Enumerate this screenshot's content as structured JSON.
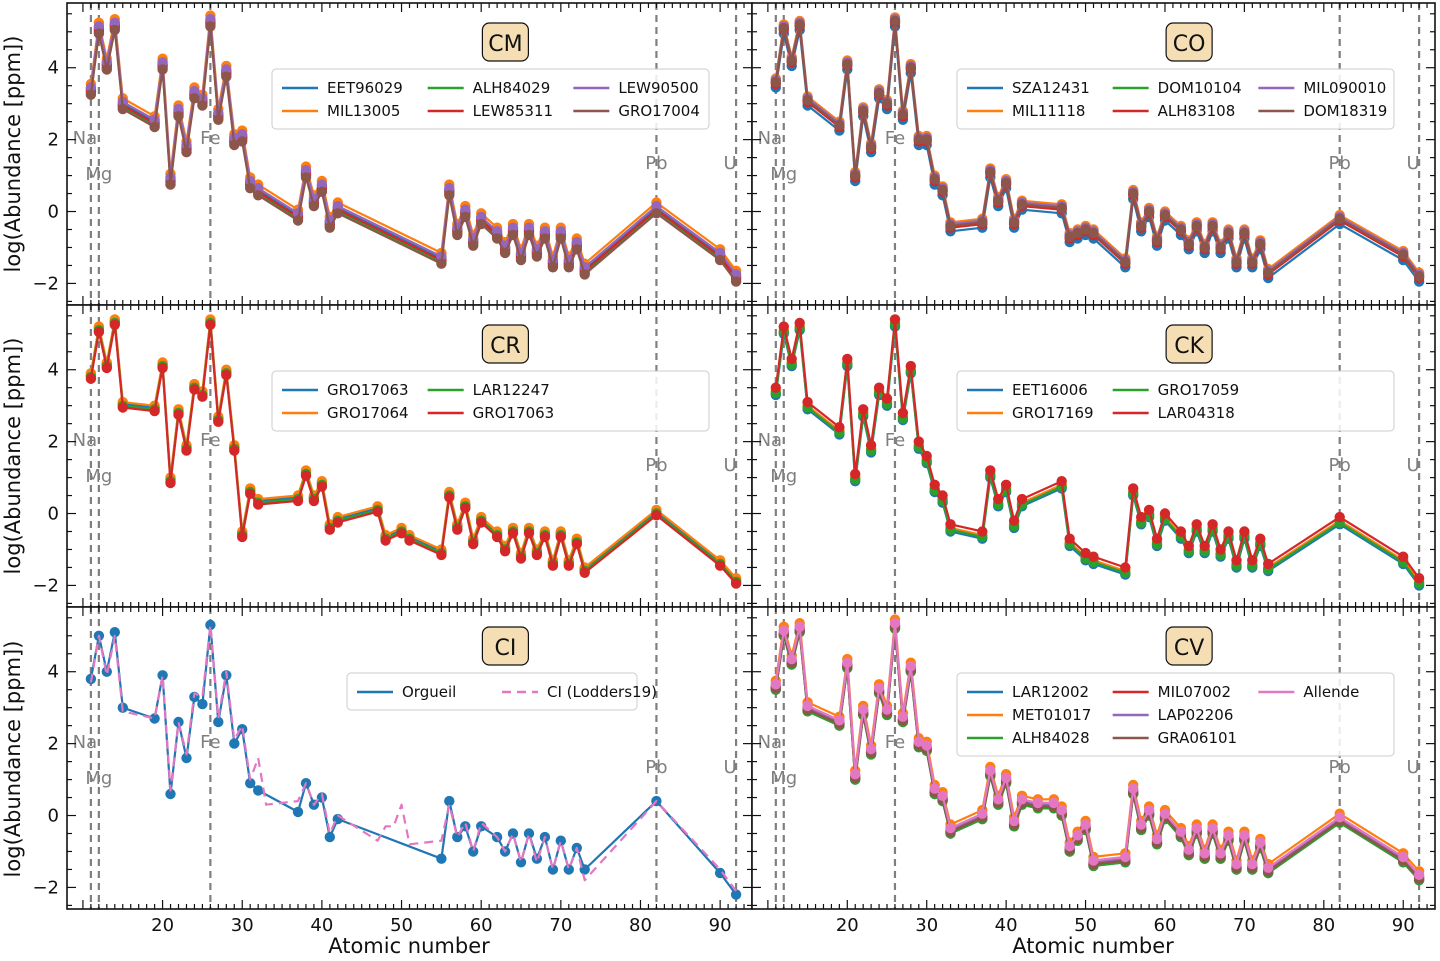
{
  "figure": {
    "xlabel": "Atomic number",
    "ylabel": "log(Abundance [ppm])",
    "xlim": [
      8,
      94
    ],
    "ylim": [
      -2.6,
      5.8
    ],
    "xticks": [
      20,
      30,
      40,
      50,
      60,
      70,
      80,
      90
    ],
    "yticks": [
      -2,
      0,
      2,
      4
    ],
    "element_markers": [
      {
        "label": "Na",
        "z": 11
      },
      {
        "label": "Mg",
        "z": 12
      },
      {
        "label": "Fe",
        "z": 26
      },
      {
        "label": "Pb",
        "z": 82
      },
      {
        "label": "U",
        "z": 92
      }
    ]
  },
  "colors": {
    "blue": "#1f77b4",
    "orange": "#ff7f0e",
    "green": "#2ca02c",
    "red": "#d62728",
    "purple": "#9467bd",
    "brown": "#8c564b",
    "pink": "#e377c2",
    "dashed_marker": "#7f7f7f",
    "title_box": "#f5deb3"
  },
  "chart_data": [
    {
      "type": "line",
      "title": "CM",
      "x": [
        11,
        12,
        13,
        14,
        15,
        19,
        20,
        21,
        22,
        23,
        24,
        25,
        26,
        27,
        28,
        29,
        30,
        31,
        32,
        37,
        38,
        39,
        40,
        41,
        42,
        55,
        56,
        57,
        58,
        59,
        60,
        62,
        63,
        64,
        65,
        66,
        67,
        68,
        69,
        70,
        71,
        72,
        73,
        82,
        90,
        92
      ],
      "reference": [
        3.4,
        5.1,
        4.1,
        5.2,
        3.0,
        2.5,
        4.1,
        0.9,
        2.8,
        1.8,
        3.3,
        3.1,
        5.3,
        2.7,
        3.9,
        2.0,
        2.1,
        0.8,
        0.6,
        -0.1,
        1.1,
        0.3,
        0.7,
        -0.3,
        0.1,
        -1.3,
        0.6,
        -0.5,
        0.0,
        -0.8,
        -0.2,
        -0.6,
        -1.0,
        -0.5,
        -1.2,
        -0.5,
        -1.1,
        -0.6,
        -1.4,
        -0.6,
        -1.4,
        -0.9,
        -1.6,
        0.1,
        -1.2,
        -1.8
      ],
      "offsets": [
        {
          "name": "EET96029",
          "color": "blue",
          "offset": 0.0
        },
        {
          "name": "MIL13005",
          "color": "orange",
          "offset": 0.15
        },
        {
          "name": "ALH84029",
          "color": "green",
          "offset": -0.1
        },
        {
          "name": "LEW85311",
          "color": "red",
          "offset": -0.05
        },
        {
          "name": "LEW90500",
          "color": "purple",
          "offset": 0.05
        },
        {
          "name": "GRO17004",
          "color": "brown",
          "offset": -0.15
        }
      ],
      "legend_ncol": 3
    },
    {
      "type": "line",
      "title": "CO",
      "x": [
        11,
        12,
        13,
        14,
        15,
        19,
        20,
        21,
        22,
        23,
        24,
        25,
        26,
        27,
        28,
        29,
        30,
        31,
        32,
        33,
        37,
        38,
        39,
        40,
        41,
        42,
        47,
        48,
        49,
        50,
        51,
        55,
        56,
        57,
        58,
        59,
        60,
        62,
        63,
        64,
        65,
        66,
        67,
        68,
        69,
        70,
        71,
        72,
        73,
        82,
        90,
        92
      ],
      "reference": [
        3.6,
        5.1,
        4.2,
        5.2,
        3.1,
        2.4,
        4.1,
        1.0,
        2.8,
        1.8,
        3.3,
        3.0,
        5.3,
        2.7,
        4.0,
        2.0,
        2.0,
        0.9,
        0.6,
        -0.4,
        -0.3,
        1.1,
        0.3,
        0.8,
        -0.3,
        0.2,
        0.1,
        -0.7,
        -0.6,
        -0.5,
        -0.6,
        -1.4,
        0.5,
        -0.4,
        0.0,
        -0.8,
        -0.1,
        -0.5,
        -0.9,
        -0.4,
        -1.0,
        -0.4,
        -1.0,
        -0.6,
        -1.4,
        -0.6,
        -1.4,
        -0.9,
        -1.7,
        -0.2,
        -1.2,
        -1.8
      ],
      "offsets": [
        {
          "name": "SZA12431",
          "color": "blue",
          "offset": -0.15
        },
        {
          "name": "MIL11118",
          "color": "orange",
          "offset": 0.1
        },
        {
          "name": "DOM10104",
          "color": "green",
          "offset": 0.0
        },
        {
          "name": "ALH83108",
          "color": "red",
          "offset": -0.05
        },
        {
          "name": "MIL090010",
          "color": "purple",
          "offset": 0.05
        },
        {
          "name": "DOM18319",
          "color": "brown",
          "offset": 0.0
        }
      ],
      "legend_ncol": 3
    },
    {
      "type": "line",
      "title": "CR",
      "x": [
        11,
        12,
        13,
        14,
        15,
        19,
        20,
        21,
        22,
        23,
        24,
        25,
        26,
        27,
        28,
        29,
        30,
        31,
        32,
        37,
        38,
        39,
        40,
        41,
        42,
        47,
        48,
        50,
        51,
        55,
        56,
        57,
        58,
        59,
        60,
        62,
        63,
        64,
        65,
        66,
        67,
        68,
        69,
        70,
        71,
        72,
        73,
        82,
        90,
        92
      ],
      "reference": [
        3.8,
        5.1,
        4.1,
        5.3,
        3.0,
        2.9,
        4.1,
        0.9,
        2.8,
        1.8,
        3.5,
        3.3,
        5.3,
        2.6,
        3.9,
        1.8,
        -0.6,
        0.6,
        0.3,
        0.4,
        1.1,
        0.4,
        0.8,
        -0.4,
        -0.2,
        0.1,
        -0.7,
        -0.5,
        -0.7,
        -1.1,
        0.5,
        -0.4,
        0.2,
        -0.8,
        -0.2,
        -0.6,
        -1.0,
        -0.5,
        -1.2,
        -0.5,
        -1.1,
        -0.6,
        -1.4,
        -0.6,
        -1.4,
        -0.8,
        -1.6,
        0.0,
        -1.4,
        -1.9
      ],
      "offsets": [
        {
          "name": "GRO17063",
          "color": "blue",
          "offset": 0.05
        },
        {
          "name": "GRO17064",
          "color": "orange",
          "offset": 0.1
        },
        {
          "name": "LAR12247",
          "color": "green",
          "offset": 0.0
        },
        {
          "name": "GRO17063",
          "color": "red",
          "offset": -0.05
        }
      ],
      "legend_ncol": 3
    },
    {
      "type": "line",
      "title": "CK",
      "x": [
        11,
        12,
        13,
        14,
        15,
        19,
        20,
        21,
        22,
        23,
        24,
        25,
        26,
        27,
        28,
        29,
        30,
        31,
        32,
        33,
        37,
        38,
        39,
        40,
        41,
        42,
        47,
        48,
        50,
        51,
        55,
        56,
        57,
        58,
        59,
        60,
        62,
        63,
        64,
        65,
        66,
        67,
        68,
        69,
        70,
        71,
        72,
        73,
        82,
        90,
        92
      ],
      "reference": [
        3.4,
        5.1,
        4.2,
        5.2,
        3.0,
        2.3,
        4.2,
        1.0,
        2.8,
        1.8,
        3.4,
        3.1,
        5.3,
        2.7,
        4.0,
        1.9,
        1.5,
        0.7,
        0.4,
        -0.4,
        -0.6,
        1.1,
        0.3,
        0.7,
        -0.3,
        0.3,
        0.8,
        -0.8,
        -1.2,
        -1.3,
        -1.6,
        0.6,
        -0.2,
        0.0,
        -0.8,
        -0.1,
        -0.6,
        -1.0,
        -0.4,
        -1.0,
        -0.4,
        -1.1,
        -0.6,
        -1.4,
        -0.6,
        -1.4,
        -0.8,
        -1.5,
        -0.2,
        -1.3,
        -1.9
      ],
      "offsets": [
        {
          "name": "EET16006",
          "color": "blue",
          "offset": -0.1
        },
        {
          "name": "GRO17169",
          "color": "orange",
          "offset": 0.0
        },
        {
          "name": "GRO17059",
          "color": "green",
          "offset": -0.05
        },
        {
          "name": "LAR04318",
          "color": "red",
          "offset": 0.1
        }
      ],
      "legend_ncol": 3
    },
    {
      "type": "line",
      "title": "CI",
      "x": [
        11,
        12,
        13,
        14,
        15,
        19,
        20,
        21,
        22,
        23,
        24,
        25,
        26,
        27,
        28,
        29,
        30,
        31,
        32,
        37,
        38,
        39,
        40,
        41,
        42,
        55,
        56,
        57,
        58,
        59,
        60,
        62,
        63,
        64,
        65,
        66,
        67,
        68,
        69,
        70,
        71,
        72,
        73,
        82,
        90,
        92
      ],
      "orgueil": [
        3.8,
        5.0,
        4.0,
        5.1,
        3.0,
        2.7,
        3.9,
        0.6,
        2.6,
        1.6,
        3.3,
        3.1,
        5.3,
        2.6,
        3.9,
        2.0,
        2.4,
        0.9,
        0.7,
        0.1,
        0.9,
        0.3,
        0.5,
        -0.6,
        -0.1,
        -1.2,
        0.4,
        -0.6,
        -0.3,
        -1.0,
        -0.3,
        -0.6,
        -1.0,
        -0.5,
        -1.3,
        -0.5,
        -1.2,
        -0.6,
        -1.5,
        -0.7,
        -1.5,
        -0.9,
        -1.5,
        0.4,
        -1.6,
        -2.2
      ],
      "lodders": [
        [
          11,
          3.7
        ],
        [
          12,
          5.0
        ],
        [
          13,
          3.9
        ],
        [
          14,
          5.0
        ],
        [
          15,
          2.9
        ],
        [
          19,
          2.7
        ],
        [
          20,
          3.9
        ],
        [
          21,
          0.7
        ],
        [
          22,
          2.6
        ],
        [
          23,
          1.7
        ],
        [
          24,
          3.4
        ],
        [
          25,
          3.3
        ],
        [
          26,
          5.3
        ],
        [
          27,
          2.7
        ],
        [
          28,
          4.0
        ],
        [
          29,
          2.1
        ],
        [
          30,
          2.5
        ],
        [
          31,
          1.0
        ],
        [
          32,
          1.6
        ],
        [
          33,
          0.3
        ],
        [
          37,
          0.4
        ],
        [
          38,
          0.9
        ],
        [
          39,
          0.3
        ],
        [
          40,
          0.6
        ],
        [
          41,
          -0.5
        ],
        [
          42,
          0.0
        ],
        [
          47,
          -0.7
        ],
        [
          48,
          -0.3
        ],
        [
          49,
          -0.3
        ],
        [
          50,
          0.3
        ],
        [
          51,
          -0.8
        ],
        [
          55,
          -0.7
        ],
        [
          56,
          0.3
        ],
        [
          57,
          -0.6
        ],
        [
          58,
          -0.2
        ],
        [
          59,
          -1.0
        ],
        [
          60,
          -0.2
        ],
        [
          62,
          -0.6
        ],
        [
          63,
          -1.0
        ],
        [
          64,
          -0.5
        ],
        [
          65,
          -1.3
        ],
        [
          66,
          -0.5
        ],
        [
          67,
          -1.3
        ],
        [
          68,
          -0.6
        ],
        [
          69,
          -1.5
        ],
        [
          70,
          -0.7
        ],
        [
          71,
          -1.5
        ],
        [
          72,
          -0.9
        ],
        [
          73,
          -1.8
        ],
        [
          82,
          0.4
        ],
        [
          90,
          -1.5
        ],
        [
          92,
          -2.1
        ]
      ],
      "series": [
        {
          "name": "Orgueil",
          "color": "blue",
          "style": "solid"
        },
        {
          "name": "CI (Lodders19)",
          "color": "pink",
          "style": "dashed"
        }
      ],
      "legend_ncol": 2
    },
    {
      "type": "line",
      "title": "CV",
      "x": [
        11,
        12,
        13,
        14,
        15,
        19,
        20,
        21,
        22,
        23,
        24,
        25,
        26,
        27,
        28,
        29,
        30,
        31,
        32,
        33,
        37,
        38,
        39,
        40,
        41,
        42,
        44,
        46,
        47,
        48,
        49,
        50,
        51,
        55,
        56,
        57,
        58,
        59,
        60,
        62,
        63,
        64,
        65,
        66,
        67,
        68,
        69,
        70,
        71,
        72,
        73,
        82,
        90,
        92
      ],
      "reference": [
        3.6,
        5.1,
        4.3,
        5.2,
        3.0,
        2.6,
        4.2,
        1.1,
        2.9,
        1.8,
        3.5,
        2.9,
        5.3,
        2.7,
        4.1,
        2.0,
        1.9,
        0.7,
        0.5,
        -0.4,
        0.0,
        1.2,
        0.4,
        1.0,
        -0.2,
        0.4,
        0.3,
        0.3,
        0.1,
        -0.9,
        -0.6,
        -0.3,
        -1.3,
        -1.2,
        0.7,
        -0.3,
        0.1,
        -0.7,
        0.0,
        -0.5,
        -1.0,
        -0.4,
        -1.1,
        -0.4,
        -1.1,
        -0.6,
        -1.4,
        -0.6,
        -1.4,
        -0.8,
        -1.5,
        -0.1,
        -1.2,
        -1.7
      ],
      "offsets": [
        {
          "name": "LAR12002",
          "color": "blue",
          "offset": -0.1
        },
        {
          "name": "MET01017",
          "color": "orange",
          "offset": 0.15
        },
        {
          "name": "ALH84028",
          "color": "green",
          "offset": -0.1
        },
        {
          "name": "MIL07002",
          "color": "red",
          "offset": -0.05
        },
        {
          "name": "LAP02206",
          "color": "purple",
          "offset": 0.0
        },
        {
          "name": "GRA06101",
          "color": "brown",
          "offset": -0.05
        },
        {
          "name": "Allende",
          "color": "pink",
          "offset": 0.05
        }
      ],
      "legend_ncol": 3
    }
  ]
}
